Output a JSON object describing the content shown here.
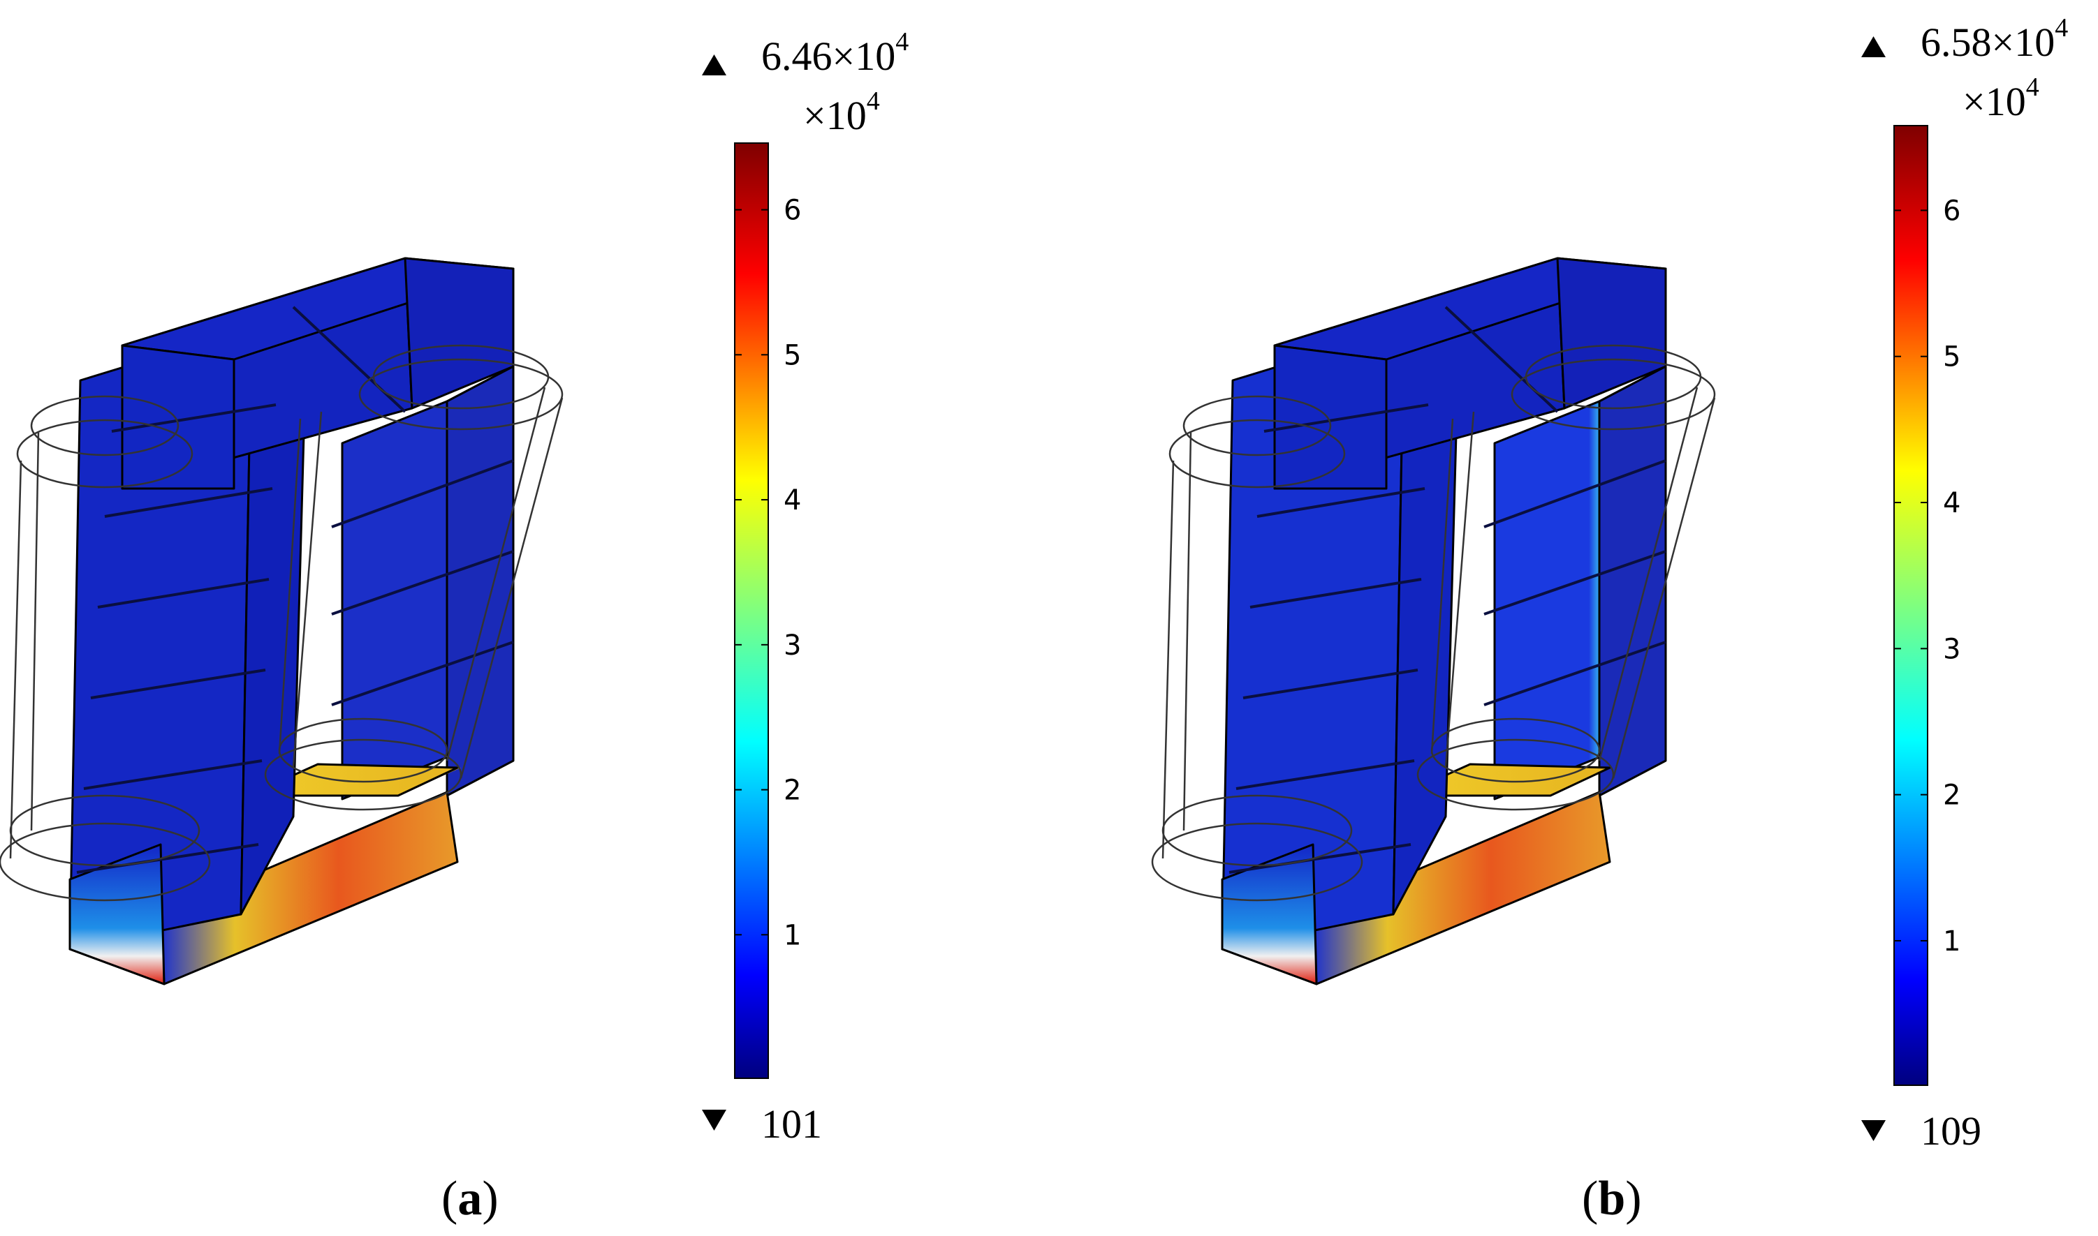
{
  "panels": [
    {
      "id": "a",
      "caption_open": "(",
      "caption_letter": "a",
      "caption_close": ")",
      "colorbar": {
        "max_label": "6.46×10",
        "max_exp": "4",
        "multiplier": "×10",
        "multiplier_exp": "4",
        "min_label": "101",
        "ticks": [
          "1",
          "2",
          "3",
          "4",
          "5",
          "6"
        ]
      }
    },
    {
      "id": "b",
      "caption_open": "(",
      "caption_letter": "b",
      "caption_close": ")",
      "colorbar": {
        "max_label": "6.58×10",
        "max_exp": "4",
        "multiplier": "×10",
        "multiplier_exp": "4",
        "min_label": "109",
        "ticks": [
          "1",
          "2",
          "3",
          "4",
          "5",
          "6"
        ]
      }
    }
  ],
  "colormap": [
    "#00007f",
    "#0000ff",
    "#0080ff",
    "#00ffff",
    "#80ff80",
    "#ffff00",
    "#ff8000",
    "#ff0000",
    "#7f0000"
  ]
}
